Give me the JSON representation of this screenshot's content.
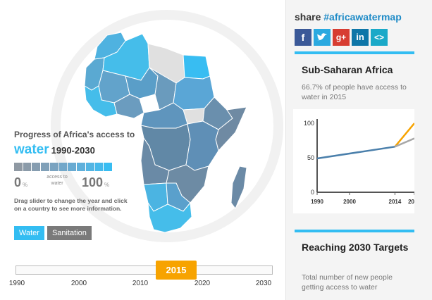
{
  "legend": {
    "title": "Progress of Africa's access to",
    "metric": "water",
    "years": "1990-2030",
    "min_value": "0",
    "max_value": "100",
    "percent_sign": "%",
    "mid_label": "access to water",
    "help_text": "Drag slider to change the year and click on a country to see more information.",
    "scale_colors": [
      "#8f99a3",
      "#8b9ba9",
      "#869db0",
      "#80a0b8",
      "#7aa3c0",
      "#72a7c9",
      "#69abd2",
      "#5fb0db",
      "#53b5e3",
      "#46b9eb",
      "#38bdf2"
    ]
  },
  "buttons": {
    "water": "Water",
    "sanitation": "Sanitation"
  },
  "slider": {
    "current_year": "2015",
    "min_year": 1990,
    "max_year": 2030,
    "tick_labels": [
      "1990",
      "2000",
      "2010",
      "2020",
      "2030"
    ]
  },
  "share": {
    "prefix": "share",
    "hashtag": "#africawatermap",
    "icons": [
      "facebook-icon",
      "twitter-icon",
      "google-plus-icon",
      "linkedin-icon",
      "embed-icon"
    ]
  },
  "region": {
    "title": "Sub-Saharan Africa",
    "text": "66.7% of people have access to water in 2015"
  },
  "chart_data": {
    "type": "line",
    "title": "",
    "xlabel": "",
    "ylabel": "",
    "x_tick_labels": [
      "1990",
      "2000",
      "2014",
      "20"
    ],
    "y_ticks": [
      0,
      50,
      100
    ],
    "xlim": [
      1990,
      2020
    ],
    "ylim": [
      0,
      100
    ],
    "series": [
      {
        "color": "#4a7fab",
        "points": [
          [
            1990,
            49
          ],
          [
            2014,
            66
          ]
        ]
      },
      {
        "color": "#f7a300",
        "points": [
          [
            2014,
            66
          ],
          [
            2020,
            100
          ]
        ]
      },
      {
        "color": "#a8a8a8",
        "points": [
          [
            2014,
            66
          ],
          [
            2020,
            78
          ]
        ]
      }
    ]
  },
  "reach": {
    "title": "Reaching 2030 Targets",
    "text": "Total number of new people getting access to water"
  },
  "colors": {
    "accent": "#33bdf2",
    "slider_handle": "#f7a300",
    "map_low": "#5f88a6",
    "map_high": "#45bdea",
    "map_nodata": "#e0e0e0"
  }
}
